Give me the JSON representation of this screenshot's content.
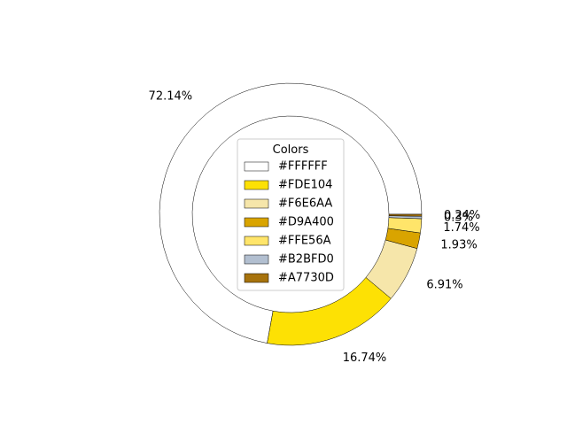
{
  "chart_data": {
    "type": "pie",
    "style": "donut",
    "title": "",
    "legend": {
      "title": "Colors",
      "placement": "center"
    },
    "slices": [
      {
        "label": "#FFFFFF",
        "value": 72.14,
        "display": "72.14%",
        "color": "#FFFFFF"
      },
      {
        "label": "#FDE104",
        "value": 16.74,
        "display": "16.74%",
        "color": "#FDE104"
      },
      {
        "label": "#F6E6AA",
        "value": 6.91,
        "display": "6.91%",
        "color": "#F6E6AA"
      },
      {
        "label": "#D9A400",
        "value": 1.93,
        "display": "1.93%",
        "color": "#D9A400"
      },
      {
        "label": "#FFE56A",
        "value": 1.74,
        "display": "1.74%",
        "color": "#FFE56A"
      },
      {
        "label": "#B2BFD0",
        "value": 0.3,
        "display": "0.3%",
        "color": "#B2BFD0"
      },
      {
        "label": "#A7730D",
        "value": 0.24,
        "display": "0.24%",
        "color": "#A7730D"
      }
    ]
  }
}
